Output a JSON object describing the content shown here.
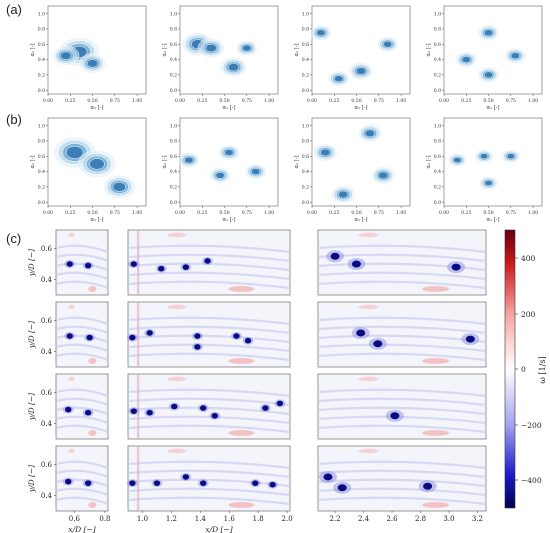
{
  "panel_labels": [
    "(a)",
    "(b)",
    "(c)"
  ],
  "kde_axes": {
    "xlabel": "α₁ [-]",
    "ylabel": "α₂ [-]",
    "ticks": [
      "0.00",
      "0.25",
      "0.50",
      "0.75",
      "1.00"
    ],
    "yticks": [
      "0.0",
      "0.2",
      "0.4",
      "0.6",
      "0.8",
      "1.0"
    ]
  },
  "vort_axes": {
    "ylabel": "y/D [−]",
    "xlabel": "x/D [−]",
    "yticks": [
      "0.4",
      "0.6"
    ],
    "col1_xticks": [
      "0.6",
      "0.8"
    ],
    "col2_xticks": [
      "1.0",
      "1.2",
      "1.4",
      "1.6",
      "1.8",
      "2.0"
    ],
    "col3_xticks": [
      "2.2",
      "2.4",
      "2.6",
      "2.8",
      "3.0",
      "3.2"
    ]
  },
  "colorbar": {
    "label": "ω [1/s]",
    "ticks": [
      "400",
      "200",
      "0",
      "−200",
      "−400"
    ],
    "range": [
      -500,
      500
    ]
  },
  "chart_data": [
    {
      "type": "heatmap",
      "title": "",
      "xlabel": "α₁ [-]",
      "ylabel": "α₂ [-]",
      "xlim": [
        0,
        1.1
      ],
      "ylim": [
        -0.05,
        1.1
      ],
      "rows": [
        [
          [
            {
              "x": 0.35,
              "y": 0.5,
              "a": 0.15
            },
            {
              "x": 0.5,
              "y": 0.35,
              "a": 0.1
            },
            {
              "x": 0.2,
              "y": 0.45,
              "a": 0.1
            }
          ],
          [
            {
              "x": 0.2,
              "y": 0.6,
              "a": 0.12
            },
            {
              "x": 0.35,
              "y": 0.55,
              "a": 0.1
            },
            {
              "x": 0.6,
              "y": 0.3,
              "a": 0.1
            },
            {
              "x": 0.75,
              "y": 0.55,
              "a": 0.08
            }
          ],
          [
            {
              "x": 0.1,
              "y": 0.75,
              "a": 0.08
            },
            {
              "x": 0.3,
              "y": 0.15,
              "a": 0.08
            },
            {
              "x": 0.55,
              "y": 0.25,
              "a": 0.09
            },
            {
              "x": 0.85,
              "y": 0.6,
              "a": 0.08
            }
          ],
          [
            {
              "x": 0.25,
              "y": 0.4,
              "a": 0.08
            },
            {
              "x": 0.5,
              "y": 0.75,
              "a": 0.08
            },
            {
              "x": 0.5,
              "y": 0.2,
              "a": 0.08
            },
            {
              "x": 0.8,
              "y": 0.45,
              "a": 0.08
            }
          ]
        ],
        [
          [
            {
              "x": 0.3,
              "y": 0.65,
              "a": 0.16
            },
            {
              "x": 0.55,
              "y": 0.5,
              "a": 0.14
            },
            {
              "x": 0.8,
              "y": 0.2,
              "a": 0.12
            }
          ],
          [
            {
              "x": 0.1,
              "y": 0.55,
              "a": 0.08
            },
            {
              "x": 0.45,
              "y": 0.35,
              "a": 0.08
            },
            {
              "x": 0.55,
              "y": 0.65,
              "a": 0.08
            },
            {
              "x": 0.85,
              "y": 0.4,
              "a": 0.08
            }
          ],
          [
            {
              "x": 0.15,
              "y": 0.65,
              "a": 0.09
            },
            {
              "x": 0.35,
              "y": 0.1,
              "a": 0.09
            },
            {
              "x": 0.65,
              "y": 0.9,
              "a": 0.09
            },
            {
              "x": 0.8,
              "y": 0.35,
              "a": 0.09
            }
          ],
          [
            {
              "x": 0.15,
              "y": 0.55,
              "a": 0.07
            },
            {
              "x": 0.45,
              "y": 0.6,
              "a": 0.07
            },
            {
              "x": 0.5,
              "y": 0.25,
              "a": 0.07
            },
            {
              "x": 0.75,
              "y": 0.6,
              "a": 0.07
            }
          ]
        ]
      ]
    },
    {
      "type": "heatmap",
      "title": "",
      "xlabel": "x/D [−]",
      "ylabel": "y/D [−]",
      "colorbar_range": [
        -500,
        500
      ],
      "columns": [
        {
          "xlim": [
            0.48,
            0.82
          ],
          "ylim": [
            0.3,
            0.72
          ]
        },
        {
          "xlim": [
            0.9,
            2.02
          ],
          "ylim": [
            0.3,
            0.72
          ]
        },
        {
          "xlim": [
            2.08,
            3.26
          ],
          "ylim": [
            0.3,
            0.72
          ]
        }
      ],
      "vortices": [
        [
          [
            {
              "x": 0.57,
              "y": 0.5
            },
            {
              "x": 0.69,
              "y": 0.49
            }
          ],
          [
            {
              "x": 0.94,
              "y": 0.5
            },
            {
              "x": 1.13,
              "y": 0.47
            },
            {
              "x": 1.3,
              "y": 0.48
            },
            {
              "x": 1.45,
              "y": 0.52
            }
          ],
          [
            {
              "x": 2.2,
              "y": 0.55
            },
            {
              "x": 2.35,
              "y": 0.5
            },
            {
              "x": 3.05,
              "y": 0.48
            }
          ]
        ],
        [
          [
            {
              "x": 0.57,
              "y": 0.5
            },
            {
              "x": 0.7,
              "y": 0.49
            }
          ],
          [
            {
              "x": 0.93,
              "y": 0.49
            },
            {
              "x": 1.05,
              "y": 0.52
            },
            {
              "x": 1.38,
              "y": 0.5
            },
            {
              "x": 1.38,
              "y": 0.43
            },
            {
              "x": 1.65,
              "y": 0.5
            },
            {
              "x": 1.73,
              "y": 0.47
            }
          ],
          [
            {
              "x": 2.38,
              "y": 0.52
            },
            {
              "x": 2.5,
              "y": 0.45
            },
            {
              "x": 3.15,
              "y": 0.48
            }
          ]
        ],
        [
          [
            {
              "x": 0.56,
              "y": 0.49
            },
            {
              "x": 0.69,
              "y": 0.47
            }
          ],
          [
            {
              "x": 0.94,
              "y": 0.48
            },
            {
              "x": 1.05,
              "y": 0.47
            },
            {
              "x": 1.22,
              "y": 0.51
            },
            {
              "x": 1.42,
              "y": 0.5
            },
            {
              "x": 1.5,
              "y": 0.45
            },
            {
              "x": 1.85,
              "y": 0.5
            },
            {
              "x": 1.95,
              "y": 0.53
            }
          ],
          [
            {
              "x": 2.62,
              "y": 0.45
            }
          ]
        ],
        [
          [
            {
              "x": 0.56,
              "y": 0.49
            },
            {
              "x": 0.69,
              "y": 0.48
            }
          ],
          [
            {
              "x": 0.93,
              "y": 0.48
            },
            {
              "x": 1.1,
              "y": 0.48
            },
            {
              "x": 1.3,
              "y": 0.52
            },
            {
              "x": 1.42,
              "y": 0.48
            },
            {
              "x": 1.78,
              "y": 0.48
            },
            {
              "x": 1.9,
              "y": 0.47
            }
          ],
          [
            {
              "x": 2.15,
              "y": 0.52
            },
            {
              "x": 2.25,
              "y": 0.45
            },
            {
              "x": 2.85,
              "y": 0.46
            }
          ]
        ]
      ]
    }
  ]
}
